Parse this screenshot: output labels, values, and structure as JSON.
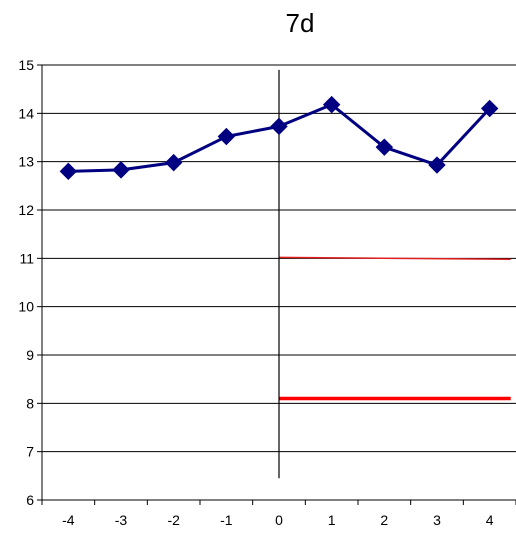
{
  "chart_data": {
    "type": "line",
    "title": "7d",
    "xlabel": "",
    "ylabel": "",
    "x": [
      -4,
      -3,
      -2,
      -1,
      0,
      1,
      2,
      3,
      4
    ],
    "xlim": [
      -4.5,
      4.5
    ],
    "ylim": [
      6,
      15
    ],
    "yticks": [
      6,
      7,
      8,
      9,
      10,
      11,
      12,
      13,
      14,
      15
    ],
    "grid": "horizontal",
    "series": [
      {
        "color": "#000080",
        "marker": "diamond",
        "x": [
          -4,
          -3,
          -2,
          -1,
          0,
          1,
          2,
          3,
          4
        ],
        "values": [
          12.8,
          12.83,
          12.98,
          13.52,
          13.73,
          14.18,
          13.3,
          12.93,
          14.1
        ]
      }
    ],
    "reference_lines": [
      {
        "color": "#e02020",
        "x": [
          0,
          4.4
        ],
        "values": [
          11.02,
          10.98
        ],
        "width": "thin"
      },
      {
        "color": "#ff0000",
        "x": [
          0,
          4.4
        ],
        "values": [
          8.1,
          8.1
        ],
        "width": "thick"
      }
    ],
    "vertical_line": {
      "x": 0,
      "range": [
        6.45,
        14.9
      ],
      "color": "#000000"
    }
  }
}
